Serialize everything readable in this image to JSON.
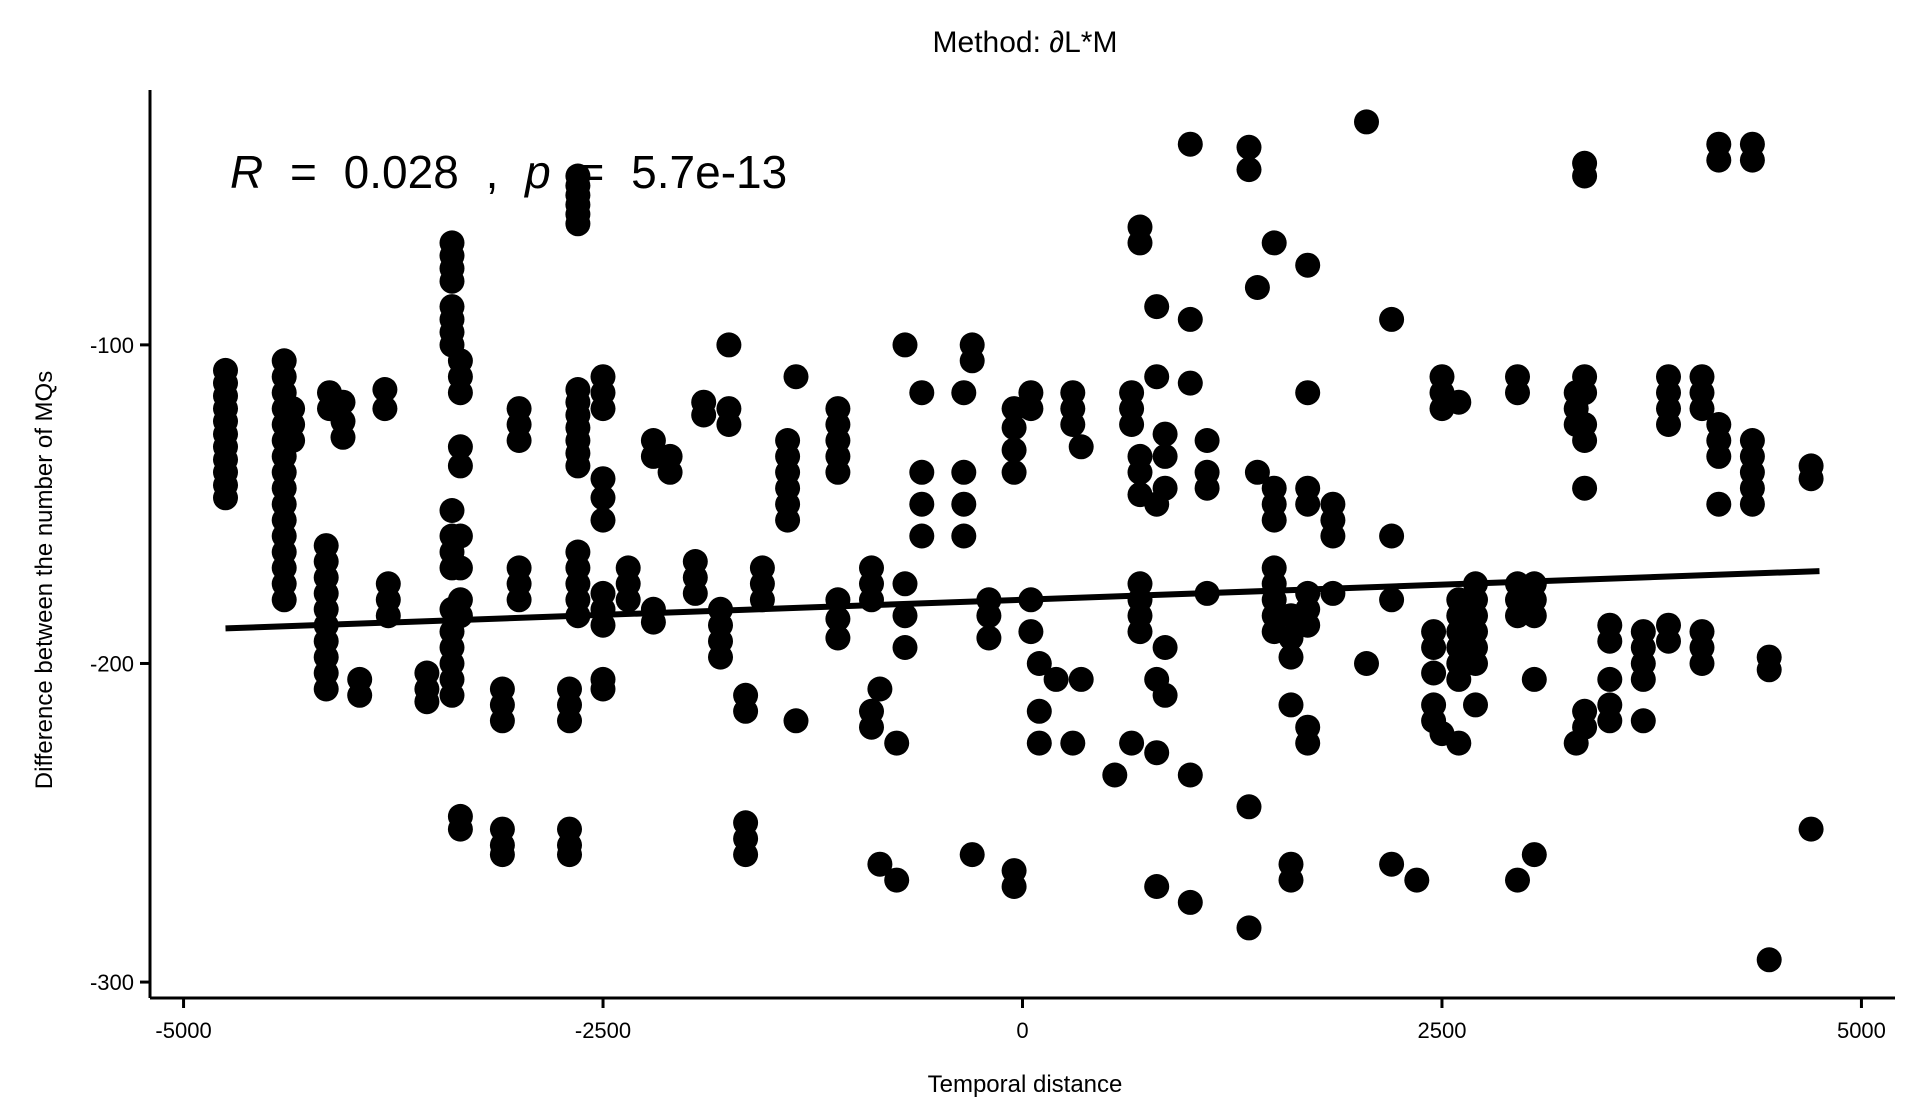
{
  "chart_data": {
    "type": "scatter",
    "title": "Method: ∂L*M",
    "xlabel": "Temporal distance",
    "ylabel": "Difference between the number of MQs",
    "xlim": [
      -5200,
      5200
    ],
    "ylim": [
      -305,
      -20
    ],
    "x_ticks": [
      -5000,
      -2500,
      0,
      2500,
      5000
    ],
    "x_tick_labels": [
      "-5000",
      "-2500",
      "0",
      "2500",
      "5000"
    ],
    "y_ticks": [
      -300,
      -200,
      -100
    ],
    "y_tick_labels": [
      "-300",
      "-200",
      "-100"
    ],
    "grid": false,
    "legend": "none",
    "marker_color": "#000000",
    "annotation": {
      "r_symbol": "R",
      "r_eq": "=",
      "r_value": "0.028",
      "sep": ",",
      "p_symbol": "p",
      "p_eq": "=",
      "p_value": "5.7e-13"
    },
    "regression_line": {
      "x": [
        -4750,
        4750
      ],
      "y": [
        -189,
        -171
      ]
    },
    "columns": [
      {
        "x": -4750,
        "y": [
          -108,
          -112,
          -116,
          -120,
          -124,
          -128,
          -132,
          -136,
          -140,
          -144,
          -148
        ]
      },
      {
        "x": -4400,
        "y": [
          -105,
          -110,
          -115,
          -120,
          -125,
          -130,
          -135,
          -140,
          -145,
          -150,
          -155,
          -160,
          -165,
          -170,
          -175,
          -180
        ]
      },
      {
        "x": -4350,
        "y": [
          -120,
          -125,
          -130
        ]
      },
      {
        "x": -4150,
        "y": [
          -163,
          -168,
          -173,
          -178,
          -183,
          -188,
          -193,
          -198,
          -203,
          -208
        ]
      },
      {
        "x": -4130,
        "y": [
          -115,
          -120
        ]
      },
      {
        "x": -4050,
        "y": [
          -118,
          -124,
          -129
        ]
      },
      {
        "x": -3950,
        "y": [
          -205,
          -210
        ]
      },
      {
        "x": -3800,
        "y": [
          -114,
          -120
        ]
      },
      {
        "x": -3780,
        "y": [
          -175,
          -180,
          -185
        ]
      },
      {
        "x": -3550,
        "y": [
          -203,
          -208,
          -212
        ]
      },
      {
        "x": -3400,
        "y": [
          -68,
          -72,
          -76,
          -80,
          -88,
          -92,
          -96,
          -100,
          -152,
          -160,
          -165,
          -170,
          -183,
          -190,
          -195,
          -200,
          -205,
          -210
        ]
      },
      {
        "x": -3350,
        "y": [
          -105,
          -110,
          -115,
          -132,
          -138,
          -160,
          -170,
          -180,
          -185,
          -248,
          -252
        ]
      },
      {
        "x": -3100,
        "y": [
          -208,
          -213,
          -218,
          -252,
          -257,
          -260
        ]
      },
      {
        "x": -3000,
        "y": [
          -120,
          -125,
          -130,
          -170,
          -175,
          -180
        ]
      },
      {
        "x": -2700,
        "y": [
          -208,
          -213,
          -218,
          -252,
          -257,
          -260
        ]
      },
      {
        "x": -2650,
        "y": [
          -47,
          -50,
          -53,
          -56,
          -59,
          -62,
          -114,
          -118,
          -122,
          -126,
          -130,
          -134,
          -138,
          -165,
          -170,
          -175,
          -180,
          -185
        ]
      },
      {
        "x": -2500,
        "y": [
          -110,
          -115,
          -120,
          -142,
          -148,
          -155,
          -178,
          -183,
          -188,
          -205,
          -208
        ]
      },
      {
        "x": -2350,
        "y": [
          -170,
          -175,
          -180
        ]
      },
      {
        "x": -2200,
        "y": [
          -130,
          -135,
          -183,
          -187
        ]
      },
      {
        "x": -2100,
        "y": [
          -135,
          -140
        ]
      },
      {
        "x": -1950,
        "y": [
          -168,
          -173,
          -178
        ]
      },
      {
        "x": -1900,
        "y": [
          -118,
          -122
        ]
      },
      {
        "x": -1800,
        "y": [
          -183,
          -188,
          -193,
          -198
        ]
      },
      {
        "x": -1750,
        "y": [
          -100,
          -120,
          -125
        ]
      },
      {
        "x": -1650,
        "y": [
          -210,
          -215,
          -250,
          -255,
          -260
        ]
      },
      {
        "x": -1550,
        "y": [
          -170,
          -175,
          -180
        ]
      },
      {
        "x": -1400,
        "y": [
          -130,
          -135,
          -140,
          -145,
          -150,
          -155
        ]
      },
      {
        "x": -1350,
        "y": [
          -110,
          -218
        ]
      },
      {
        "x": -1100,
        "y": [
          -120,
          -125,
          -130,
          -135,
          -140,
          -180,
          -186,
          -192
        ]
      },
      {
        "x": -900,
        "y": [
          -170,
          -175,
          -180,
          -215,
          -220
        ]
      },
      {
        "x": -850,
        "y": [
          -263,
          -208
        ]
      },
      {
        "x": -750,
        "y": [
          -225,
          -268
        ]
      },
      {
        "x": -700,
        "y": [
          -100,
          -175,
          -185,
          -195
        ]
      },
      {
        "x": -600,
        "y": [
          -115,
          -140,
          -150,
          -160
        ]
      },
      {
        "x": -350,
        "y": [
          -115,
          -140,
          -150,
          -160
        ]
      },
      {
        "x": -300,
        "y": [
          -100,
          -105,
          -260
        ]
      },
      {
        "x": -200,
        "y": [
          -192,
          -180,
          -185
        ]
      },
      {
        "x": -50,
        "y": [
          -120,
          -126,
          -133,
          -140,
          -270,
          -265
        ]
      },
      {
        "x": 50,
        "y": [
          -115,
          -120,
          -180,
          -190
        ]
      },
      {
        "x": 100,
        "y": [
          -200,
          -215,
          -225
        ]
      },
      {
        "x": 200,
        "y": [
          -205
        ]
      },
      {
        "x": 300,
        "y": [
          -115,
          -120,
          -125,
          -225
        ]
      },
      {
        "x": 350,
        "y": [
          -205,
          -132
        ]
      },
      {
        "x": 550,
        "y": [
          -235
        ]
      },
      {
        "x": 650,
        "y": [
          -115,
          -120,
          -125,
          -225
        ]
      },
      {
        "x": 700,
        "y": [
          -63,
          -68,
          -135,
          -140,
          -147,
          -175,
          -180,
          -185,
          -190
        ]
      },
      {
        "x": 800,
        "y": [
          -88,
          -110,
          -150,
          -205,
          -228,
          -270
        ]
      },
      {
        "x": 850,
        "y": [
          -128,
          -135,
          -145,
          -195,
          -210
        ]
      },
      {
        "x": 1000,
        "y": [
          -37,
          -92,
          -112,
          -235,
          -275
        ]
      },
      {
        "x": 1100,
        "y": [
          -130,
          -140,
          -145,
          -178
        ]
      },
      {
        "x": 1350,
        "y": [
          -38,
          -45,
          -245,
          -283
        ]
      },
      {
        "x": 1400,
        "y": [
          -82,
          -140
        ]
      },
      {
        "x": 1500,
        "y": [
          -68,
          -145,
          -150,
          -155,
          -170,
          -175,
          -180,
          -185,
          -190
        ]
      },
      {
        "x": 1600,
        "y": [
          -185,
          -192,
          -198,
          -213,
          -263,
          -268
        ]
      },
      {
        "x": 1700,
        "y": [
          -75,
          -115,
          -145,
          -150,
          -178,
          -183,
          -188,
          -220,
          -225
        ]
      },
      {
        "x": 1850,
        "y": [
          -150,
          -155,
          -160,
          -178
        ]
      },
      {
        "x": 2050,
        "y": [
          -30,
          -200
        ]
      },
      {
        "x": 2200,
        "y": [
          -92,
          -160,
          -180,
          -263
        ]
      },
      {
        "x": 2350,
        "y": [
          -268
        ]
      },
      {
        "x": 2450,
        "y": [
          -190,
          -195,
          -203,
          -213,
          -218
        ]
      },
      {
        "x": 2500,
        "y": [
          -110,
          -115,
          -120,
          -222
        ]
      },
      {
        "x": 2600,
        "y": [
          -118,
          -180,
          -185,
          -190,
          -195,
          -200,
          -205,
          -225
        ]
      },
      {
        "x": 2700,
        "y": [
          -175,
          -180,
          -185,
          -190,
          -195,
          -200,
          -213
        ]
      },
      {
        "x": 2950,
        "y": [
          -110,
          -115,
          -175,
          -180,
          -185,
          -268
        ]
      },
      {
        "x": 3050,
        "y": [
          -175,
          -180,
          -185,
          -205,
          -260
        ]
      },
      {
        "x": 3300,
        "y": [
          -115,
          -120,
          -125,
          -225
        ]
      },
      {
        "x": 3350,
        "y": [
          -43,
          -47,
          -110,
          -115,
          -125,
          -130,
          -145,
          -215,
          -220
        ]
      },
      {
        "x": 3500,
        "y": [
          -188,
          -193,
          -205,
          -213,
          -218
        ]
      },
      {
        "x": 3700,
        "y": [
          -190,
          -195,
          -200,
          -205,
          -218
        ]
      },
      {
        "x": 3850,
        "y": [
          -110,
          -115,
          -120,
          -125,
          -188,
          -193
        ]
      },
      {
        "x": 4050,
        "y": [
          -110,
          -115,
          -120,
          -190,
          -195,
          -200
        ]
      },
      {
        "x": 4150,
        "y": [
          -37,
          -42,
          -125,
          -130,
          -135,
          -150
        ]
      },
      {
        "x": 4350,
        "y": [
          -37,
          -42,
          -130,
          -135,
          -140,
          -145,
          -150
        ]
      },
      {
        "x": 4450,
        "y": [
          -198,
          -202,
          -293
        ]
      },
      {
        "x": 4700,
        "y": [
          -138,
          -142,
          -252
        ]
      }
    ]
  }
}
